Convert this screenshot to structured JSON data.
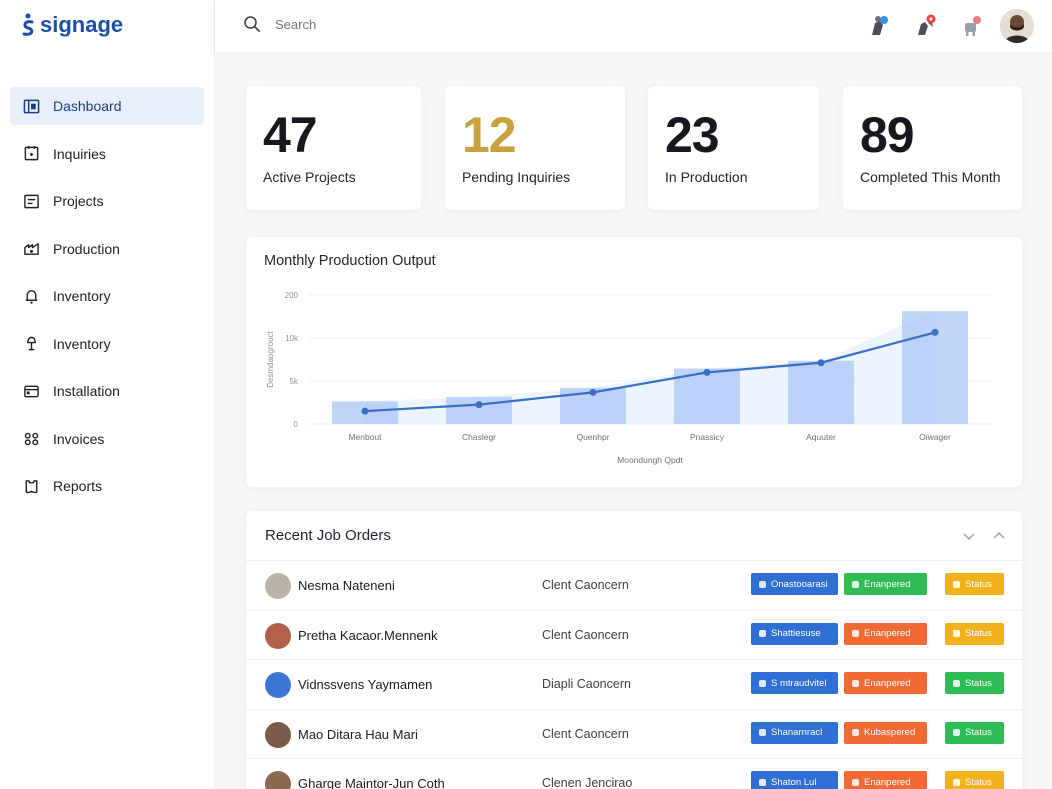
{
  "brand": {
    "name": "signage",
    "color": "#1e4fa8"
  },
  "nav": [
    {
      "label": "Dashboard",
      "icon": "dashboard-icon",
      "active": true
    },
    {
      "label": "Inquiries",
      "icon": "inquiries-icon"
    },
    {
      "label": "Projects",
      "icon": "projects-icon"
    },
    {
      "label": "Production",
      "icon": "production-icon"
    },
    {
      "label": "Inventory",
      "icon": "bell-icon"
    },
    {
      "label": "Inventory",
      "icon": "lamp-icon"
    },
    {
      "label": "Installation",
      "icon": "installation-icon"
    },
    {
      "label": "Invoices",
      "icon": "invoices-icon"
    },
    {
      "label": "Reports",
      "icon": "reports-icon"
    }
  ],
  "search": {
    "placeholder": "Search"
  },
  "stats": [
    {
      "value": "47",
      "label": "Active Projects"
    },
    {
      "value": "12",
      "label": "Pending Inquiries",
      "color": "#c9a23f"
    },
    {
      "value": "23",
      "label": "In Production"
    },
    {
      "value": "89",
      "label": "Completed This Month"
    }
  ],
  "chart": {
    "title": "Monthly Production Output"
  },
  "chart_data": {
    "type": "bar",
    "title": "Monthly Production Output",
    "categories": [
      "Menbout",
      "Chaslegr",
      "Quenhpr",
      "Pnassicy",
      "Aquuter",
      "Oiwager"
    ],
    "yticks": [
      "0",
      "5k",
      "10k",
      "200"
    ],
    "ylabel": "Desmdaogrouct",
    "xlabel": "Moondungh Qpdt",
    "ylim": [
      0,
      20
    ],
    "series": [
      {
        "type": "bar",
        "values": [
          3.5,
          4.2,
          5.6,
          8.6,
          9.8,
          17.5
        ],
        "color": "#aac8f5"
      },
      {
        "type": "line",
        "values": [
          2.0,
          3.0,
          4.9,
          8.0,
          9.5,
          14.2
        ],
        "color": "#3b6fc4"
      }
    ],
    "grid": true
  },
  "orders": {
    "title": "Recent Job Orders",
    "rows": [
      {
        "name": "Nesma Nateneni",
        "client": "Clent Caoncern",
        "avatar": "#b9b2a8",
        "p1": "Onastooarasi",
        "p1c": "#2f6fd4",
        "p2": "Enanpered",
        "p2c": "#2fbb55",
        "p3": "Status",
        "p3c": "#f2b21c"
      },
      {
        "name": "Pretha Kacaor.Mennenk",
        "client": "Clent Caoncern",
        "avatar": "#b2604d",
        "p1": "Shattiesuse",
        "p1c": "#2f6fd4",
        "p2": "Enanpered",
        "p2c": "#f06a35",
        "p3": "Status",
        "p3c": "#f2b21c"
      },
      {
        "name": "Vidnssvens Yaymamen",
        "client": "Diapli Caoncern",
        "avatar": "#3a76d6",
        "p1": "S mtraudvitel",
        "p1c": "#2f6fd4",
        "p2": "Enanpered",
        "p2c": "#f06a35",
        "p3": "Status",
        "p3c": "#2fbb55"
      },
      {
        "name": "Mao Ditara Hau Mari",
        "client": "Clent Caoncern",
        "avatar": "#7a5a48",
        "p1": "Shanarnracl",
        "p1c": "#2f6fd4",
        "p2": "Kubaspered",
        "p2c": "#f06a35",
        "p3": "Status",
        "p3c": "#2fbb55"
      },
      {
        "name": "Gharge Maintor-Jun Coth",
        "client": "Clenen Jencirao",
        "avatar": "#8a6a55",
        "p1": "Shaton Lul",
        "p1c": "#2f6fd4",
        "p2": "Enanpered",
        "p2c": "#f06a35",
        "p3": "Status",
        "p3c": "#f2b21c"
      }
    ]
  },
  "topbar_icons": [
    "notification-blue-icon",
    "notification-red-icon",
    "notification-pink-icon"
  ]
}
